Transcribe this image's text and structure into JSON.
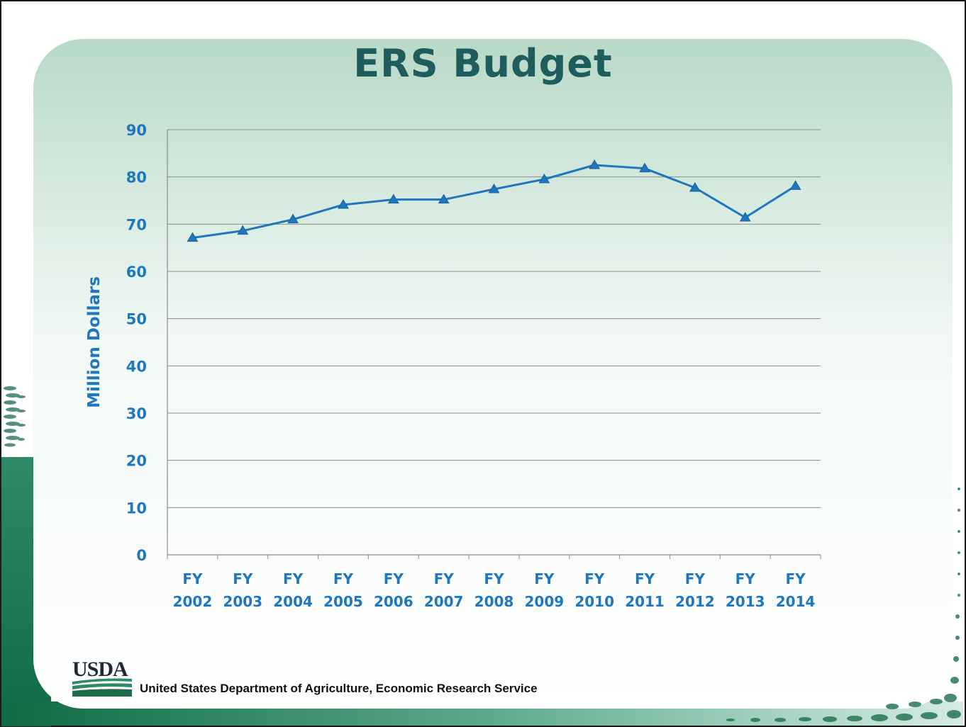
{
  "slide": {
    "title": "ERS Budget",
    "logo_text": "USDA",
    "footer": "United States Department of Agriculture, Economic Research Service"
  },
  "colors": {
    "line": "#1f77c0",
    "tick_text": "#1f77c0",
    "title": "#1f5c5c",
    "band_dark": "#0f6b44",
    "band_light": "#bfe0d2"
  },
  "chart_data": {
    "type": "line",
    "title": "ERS Budget",
    "xlabel": "",
    "ylabel": "Million Dollars",
    "ylim": [
      0,
      90
    ],
    "ytick_step": 10,
    "grid": true,
    "legend": "none",
    "categories": [
      [
        "FY",
        "2002"
      ],
      [
        "FY",
        "2003"
      ],
      [
        "FY",
        "2004"
      ],
      [
        "FY",
        "2005"
      ],
      [
        "FY",
        "2006"
      ],
      [
        "FY",
        "2007"
      ],
      [
        "FY",
        "2008"
      ],
      [
        "FY",
        "2009"
      ],
      [
        "FY",
        "2010"
      ],
      [
        "FY",
        "2011"
      ],
      [
        "FY",
        "2012"
      ],
      [
        "FY",
        "2013"
      ],
      [
        "FY",
        "2014"
      ]
    ],
    "series": [
      {
        "values": [
          67.1,
          68.6,
          71.0,
          74.1,
          75.2,
          75.2,
          77.4,
          79.5,
          82.5,
          81.8,
          77.7,
          71.4,
          78.1
        ]
      }
    ]
  }
}
